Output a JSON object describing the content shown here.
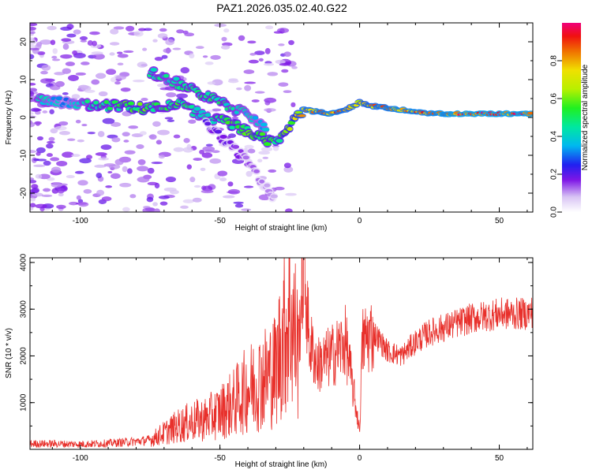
{
  "title": "PAZ1.2026.035.02.40.G22",
  "chart_data": [
    {
      "type": "heatmap",
      "name": "spectrogram",
      "xlabel": "Height of straight line (km)",
      "ylabel": "Frequency (Hz)",
      "xlim": [
        -118,
        62
      ],
      "ylim": [
        -25,
        25
      ],
      "xticks": [
        -100,
        -50,
        0,
        50
      ],
      "yticks": [
        -20,
        -10,
        0,
        10,
        20
      ],
      "colorbar": {
        "label": "Normalized spectral amplitude",
        "ticks": [
          "0.0",
          "0.2",
          "0.4",
          "0.6",
          "0.8"
        ],
        "range": [
          0,
          1
        ]
      },
      "ridges": [
        {
          "name": "main",
          "points": [
            [
              -115,
              5,
              0.45
            ],
            [
              -105,
              4,
              0.35
            ],
            [
              -95,
              3,
              0.5
            ],
            [
              -85,
              3,
              0.55
            ],
            [
              -78,
              2.5,
              0.6
            ],
            [
              -72,
              3,
              0.5
            ],
            [
              -65,
              3.5,
              0.55
            ],
            [
              -60,
              2,
              0.5
            ],
            [
              -55,
              0,
              0.45
            ],
            [
              -48,
              -1,
              0.55
            ],
            [
              -42,
              -3,
              0.55
            ],
            [
              -36,
              -5,
              0.6
            ],
            [
              -30,
              -7,
              0.55
            ],
            [
              -25,
              -2,
              0.65
            ],
            [
              -20,
              2,
              0.85
            ],
            [
              -10,
              1,
              0.9
            ],
            [
              -5,
              2,
              0.85
            ],
            [
              0,
              4,
              0.8
            ],
            [
              5,
              3,
              0.85
            ],
            [
              15,
              2,
              0.9
            ],
            [
              25,
              1,
              0.9
            ],
            [
              35,
              1,
              0.95
            ],
            [
              45,
              1,
              0.95
            ],
            [
              62,
              1,
              0.95
            ]
          ]
        },
        {
          "name": "upper",
          "points": [
            [
              -75,
              12,
              0.5
            ],
            [
              -68,
              10,
              0.45
            ],
            [
              -62,
              8,
              0.5
            ],
            [
              -56,
              6,
              0.5
            ],
            [
              -50,
              4,
              0.5
            ],
            [
              -44,
              2,
              0.45
            ],
            [
              -38,
              0,
              0.4
            ],
            [
              -33,
              -3,
              0.4
            ]
          ]
        },
        {
          "name": "lower-tail",
          "points": [
            [
              -55,
              -2,
              0.2
            ],
            [
              -50,
              -5,
              0.2
            ],
            [
              -45,
              -8,
              0.18
            ],
            [
              -40,
              -12,
              0.15
            ],
            [
              -35,
              -17,
              0.12
            ],
            [
              -30,
              -22,
              0.1
            ]
          ]
        }
      ]
    },
    {
      "type": "line",
      "name": "snr",
      "xlabel": "Height of straight line (km)",
      "ylabel": "SNR (10 * v/v)",
      "xlim": [
        -118,
        62
      ],
      "ylim": [
        0,
        4100
      ],
      "xticks": [
        -100,
        -50,
        0,
        50
      ],
      "yticks": [
        1000,
        2000,
        3000,
        4000
      ],
      "color": "#e8302b",
      "series": [
        {
          "name": "SNR",
          "x": [
            -118,
            -110,
            -100,
            -90,
            -80,
            -75,
            -70,
            -65,
            -60,
            -55,
            -50,
            -45,
            -40,
            -35,
            -30,
            -28,
            -25,
            -22,
            -20,
            -18,
            -15,
            -10,
            -5,
            0,
            1,
            5,
            10,
            15,
            20,
            25,
            30,
            35,
            40,
            45,
            50,
            55,
            60,
            62
          ],
          "values": [
            120,
            120,
            110,
            130,
            170,
            200,
            350,
            500,
            600,
            650,
            800,
            1000,
            1300,
            1500,
            1700,
            2300,
            2900,
            2200,
            4000,
            2300,
            1800,
            2000,
            2300,
            400,
            2300,
            2500,
            2100,
            2000,
            2300,
            2500,
            2600,
            2700,
            2800,
            2850,
            2900,
            2900,
            2900,
            2950
          ]
        }
      ]
    }
  ]
}
